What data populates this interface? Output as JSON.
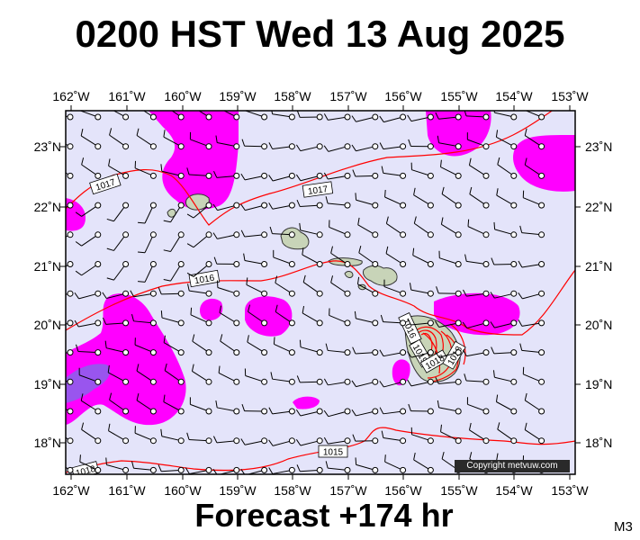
{
  "title": "0200 HST Wed 13 Aug 2025",
  "forecast_label": "Forecast +174 hr",
  "model_label": "M3",
  "copyright": "Copyright metvuw.com",
  "colors": {
    "background": "#e4e4fa",
    "precip_light": "#ff00ff",
    "precip_heavy": "#9955ee",
    "isobar": "#ff0000",
    "land": "#c8d4b8"
  },
  "axes": {
    "lon_labels": [
      "162˚W",
      "161˚W",
      "160˚W",
      "159˚W",
      "158˚W",
      "157˚W",
      "156˚W",
      "155˚W",
      "154˚W",
      "153˚W"
    ],
    "lat_labels": [
      "23˚N",
      "22˚N",
      "21˚N",
      "20˚N",
      "19˚N",
      "18˚N"
    ]
  },
  "isobar_labels": [
    "1017",
    "1017",
    "1016",
    "1016",
    "1015",
    "1019",
    "1018",
    "1018",
    "1018"
  ]
}
